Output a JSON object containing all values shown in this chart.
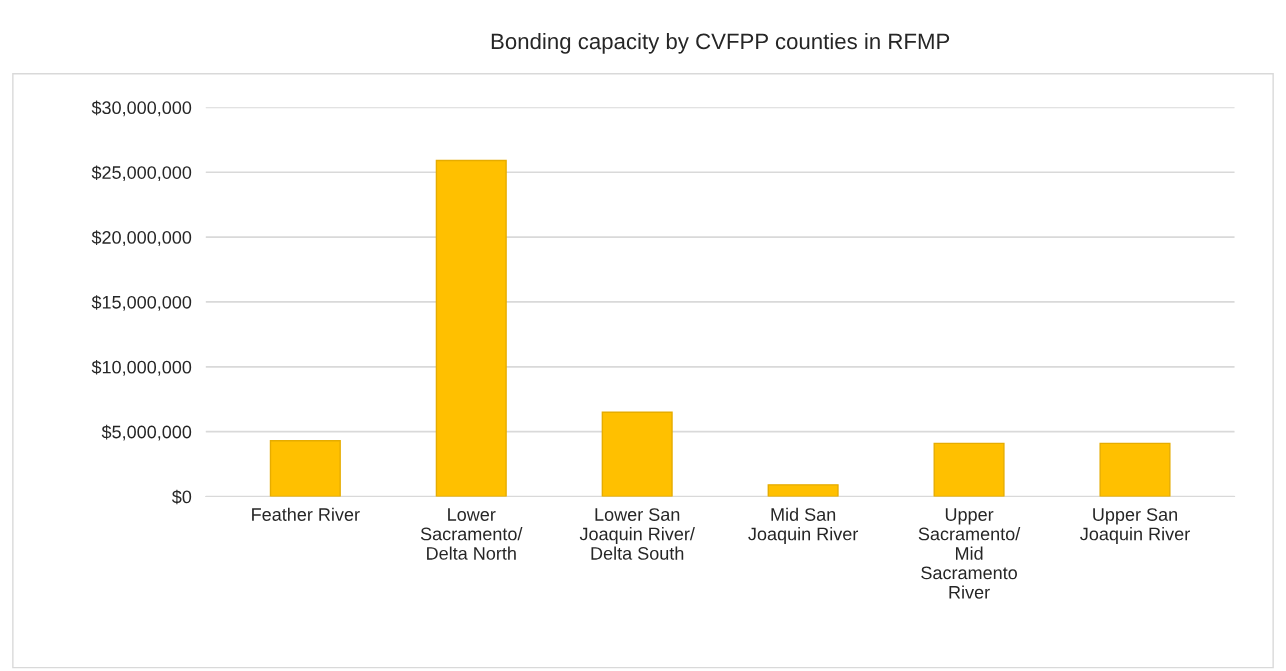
{
  "chart_data": {
    "type": "bar",
    "title": "Bonding capacity by CVFPP counties in RFMP",
    "categories": [
      "Feather River",
      "Lower\nSacramento/\nDelta North",
      "Lower San\nJoaquin River/\nDelta South",
      "Mid San\nJoaquin River",
      "Upper\nSacramento/\nMid\nSacramento\nRiver",
      "Upper San\nJoaquin River"
    ],
    "values": [
      4300000,
      25900000,
      6500000,
      900000,
      4100000,
      4100000
    ],
    "color": "#ffc000",
    "ylim": [
      0,
      30000000
    ],
    "yticks": [
      {
        "value": 0,
        "label": "$0"
      },
      {
        "value": 5000000,
        "label": "$5,000,000"
      },
      {
        "value": 10000000,
        "label": "$10,000,000"
      },
      {
        "value": 15000000,
        "label": "$15,000,000"
      },
      {
        "value": 20000000,
        "label": "$20,000,000"
      },
      {
        "value": 25000000,
        "label": "$25,000,000"
      },
      {
        "value": 30000000,
        "label": "$30,000,000"
      }
    ],
    "grid": "y"
  }
}
